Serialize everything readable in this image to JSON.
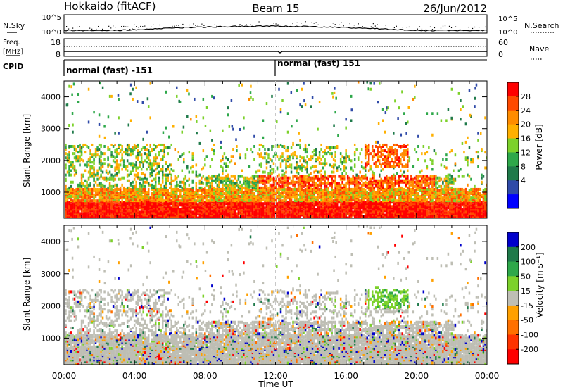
{
  "header": {
    "station": "Hokkaido (fitACF)",
    "beam": "Beam 15",
    "date": "26/Jun/2012"
  },
  "top_panels": {
    "nsky_label": "N.Sky",
    "nsky_ticks": [
      "10^5",
      "10^0"
    ],
    "nsky_right_ticks": [
      "10^5",
      "10^0"
    ],
    "nsearch_label": "N.Search",
    "freq_label": "Freq.",
    "freq_unit": "[MHz]",
    "freq_ticks": [
      "18",
      "8"
    ],
    "nave_label": "Nave",
    "nave_ticks": [
      "60",
      "0"
    ],
    "cpid_label": "CPID",
    "cpid_segments": [
      "normal (fast) -151",
      "normal (fast) 151"
    ]
  },
  "chart_data": [
    {
      "type": "heatmap",
      "title": "",
      "xlabel": "",
      "ylabel": "Slant Range [km]",
      "y_ticks": [
        "1000",
        "2000",
        "3000",
        "4000"
      ],
      "ylim": [
        180,
        4500
      ],
      "colorbar": {
        "label": "Power [dB]",
        "ticks": [
          "28",
          "24",
          "20",
          "16",
          "12",
          "8",
          "4"
        ],
        "colors": [
          "#ff0000",
          "#ff4a00",
          "#ff8c00",
          "#ffb000",
          "#7cd12a",
          "#2ea84a",
          "#1f7a4a",
          "#2f4aa8",
          "#0000ff"
        ]
      },
      "note": "range-time intensity of backscatter power"
    },
    {
      "type": "heatmap",
      "title": "",
      "xlabel": "Time UT",
      "ylabel": "Slant Range [km]",
      "x_ticks": [
        "00:00",
        "04:00",
        "08:00",
        "12:00",
        "16:00",
        "20:00",
        "00:00"
      ],
      "y_ticks": [
        "1000",
        "2000",
        "3000",
        "4000"
      ],
      "ylim": [
        180,
        4500
      ],
      "colorbar": {
        "label": "Velocity [m s⁻¹]",
        "ticks": [
          "200",
          "100",
          "50",
          "15",
          "-15",
          "-50",
          "-100",
          "-200"
        ],
        "colors": [
          "#0000cc",
          "#1f7a4a",
          "#2ea84a",
          "#7cd12a",
          "#bebeb4",
          "#ffa000",
          "#ff7000",
          "#ff3300",
          "#ff0000"
        ]
      },
      "note": "range-time Doppler velocity; mostly ground scatter (grey)"
    }
  ]
}
